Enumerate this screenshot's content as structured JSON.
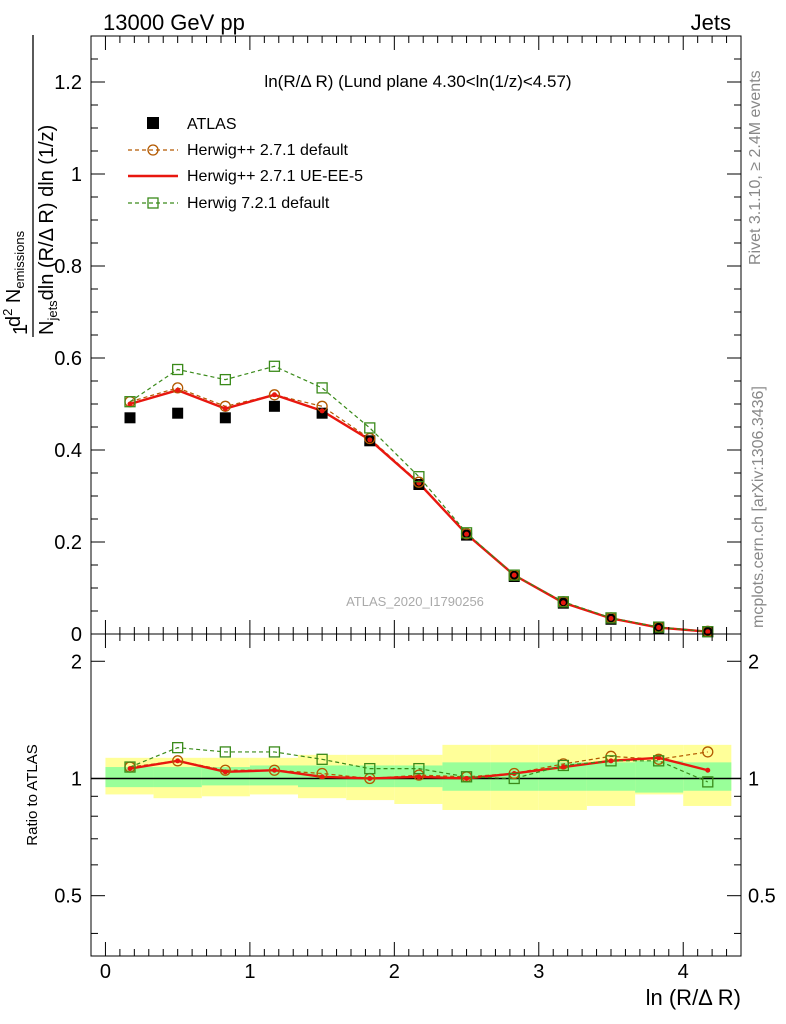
{
  "header": {
    "energy_label": "13000 GeV pp",
    "category_label": "Jets"
  },
  "side_labels": {
    "rivet": "Rivet 3.1.10, ≥ 2.4M events",
    "mcplots": "mcplots.cern.ch [arXiv:1306.3436]"
  },
  "colors": {
    "data": "#000000",
    "herwig_pp_default": "#b35900",
    "herwig_pp_ueee5": "#e8170f",
    "herwig7_default": "#3a8a1a",
    "band_inner": "#99ff99",
    "band_outer": "#ffff99"
  },
  "chart_data": {
    "type": "scatter",
    "title": "ln(R/Δ R) (Lund plane 4.30<ln(1/z)<4.57)",
    "analysis_label": "ATLAS_2020_I1790256",
    "xlabel": "ln (R/Δ R)",
    "ylabel_main": "1/N_jets d²N_emissions / dln(R/Δ R) dln(1/z)",
    "ylabel_main_parts": {
      "one": "1",
      "n": "N",
      "jets": "jets",
      "dln_rest": "dln (R/Δ R) dln (1/z)",
      "d2": "d",
      "two": "2",
      "n2": " N",
      "emissions": "emissions"
    },
    "ylabel_ratio": "Ratio to ATLAS",
    "xlim": [
      -0.1,
      4.4
    ],
    "ylim_main": [
      0,
      1.3
    ],
    "ylim_ratio": [
      0.35,
      2.35
    ],
    "x_ticks": [
      "0",
      "1",
      "2",
      "3",
      "4"
    ],
    "y_ticks_main": [
      "0",
      "0.2",
      "0.4",
      "0.6",
      "0.8",
      "1",
      "1.2"
    ],
    "y_ticks_ratio": [
      "0.5",
      "1",
      "2"
    ],
    "x": [
      0.17,
      0.5,
      0.83,
      1.17,
      1.5,
      1.83,
      2.17,
      2.5,
      2.83,
      3.17,
      3.5,
      3.83,
      4.17
    ],
    "bins": [
      0.0,
      0.333,
      0.667,
      1.0,
      1.333,
      1.667,
      2.0,
      2.333,
      2.667,
      3.0,
      3.333,
      3.667,
      4.0,
      4.333
    ],
    "series": [
      {
        "name": "ATLAS",
        "style": "data",
        "values": [
          0.47,
          0.48,
          0.47,
          0.495,
          0.48,
          0.42,
          0.325,
          0.215,
          0.125,
          0.067,
          0.032,
          0.013,
          0.005
        ],
        "ratio": [
          1,
          1,
          1,
          1,
          1,
          1,
          1,
          1,
          1,
          1,
          1,
          1,
          1
        ]
      },
      {
        "name": "Herwig++ 2.7.1 default",
        "style": "dashed-circle",
        "values": [
          0.505,
          0.535,
          0.495,
          0.52,
          0.495,
          0.425,
          0.33,
          0.218,
          0.128,
          0.07,
          0.035,
          0.015,
          0.006
        ],
        "ratio": [
          1.07,
          1.11,
          1.05,
          1.05,
          1.03,
          1.0,
          1.02,
          1.01,
          1.03,
          1.09,
          1.14,
          1.12,
          1.17
        ]
      },
      {
        "name": "Herwig++ 2.7.1 UE-EE-5",
        "style": "solid",
        "values": [
          0.5,
          0.53,
          0.49,
          0.52,
          0.485,
          0.422,
          0.328,
          0.217,
          0.128,
          0.068,
          0.034,
          0.014,
          0.005
        ],
        "ratio": [
          1.06,
          1.11,
          1.04,
          1.05,
          1.01,
          1.0,
          1.01,
          1.0,
          1.03,
          1.07,
          1.11,
          1.13,
          1.05
        ]
      },
      {
        "name": "Herwig 7.2.1 default",
        "style": "dashed-square",
        "values": [
          0.505,
          0.575,
          0.553,
          0.582,
          0.535,
          0.448,
          0.342,
          0.22,
          0.128,
          0.07,
          0.035,
          0.015,
          0.005
        ],
        "ratio": [
          1.07,
          1.2,
          1.17,
          1.17,
          1.12,
          1.06,
          1.06,
          1.01,
          1.0,
          1.08,
          1.11,
          1.11,
          0.98
        ]
      }
    ],
    "band_inner": [
      [
        0.95,
        1.07
      ],
      [
        0.95,
        1.07
      ],
      [
        0.96,
        1.07
      ],
      [
        0.96,
        1.08
      ],
      [
        0.95,
        1.08
      ],
      [
        0.95,
        1.08
      ],
      [
        0.95,
        1.08
      ],
      [
        0.93,
        1.1
      ],
      [
        0.93,
        1.1
      ],
      [
        0.93,
        1.1
      ],
      [
        0.93,
        1.1
      ],
      [
        0.92,
        1.11
      ],
      [
        0.93,
        1.1
      ]
    ],
    "band_outer": [
      [
        0.91,
        1.13
      ],
      [
        0.89,
        1.13
      ],
      [
        0.9,
        1.13
      ],
      [
        0.91,
        1.13
      ],
      [
        0.89,
        1.15
      ],
      [
        0.88,
        1.15
      ],
      [
        0.86,
        1.15
      ],
      [
        0.83,
        1.22
      ],
      [
        0.83,
        1.22
      ],
      [
        0.83,
        1.22
      ],
      [
        0.85,
        1.22
      ],
      [
        0.91,
        1.22
      ],
      [
        0.85,
        1.22
      ]
    ]
  }
}
